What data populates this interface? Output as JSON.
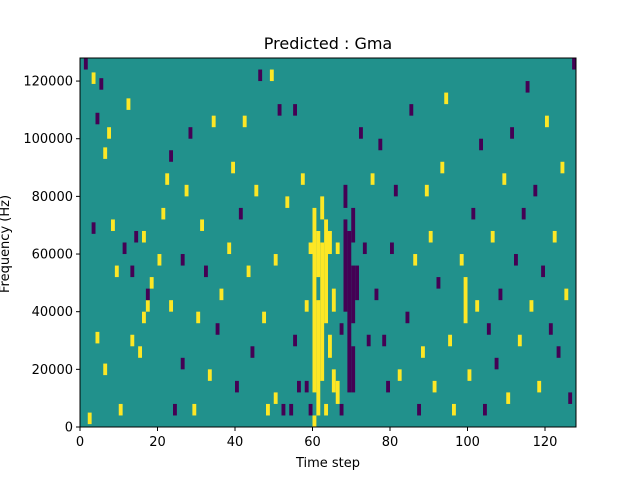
{
  "chart_data": {
    "type": "heatmap",
    "title": "Predicted : Gma",
    "xlabel": "Time step",
    "ylabel": "Frequency (Hz)",
    "xlim": [
      0,
      128
    ],
    "ylim": [
      0,
      128000
    ],
    "xticks": [
      0,
      20,
      40,
      60,
      80,
      100,
      120
    ],
    "yticks": [
      0,
      20000,
      40000,
      60000,
      80000,
      100000,
      120000
    ],
    "xtick_labels": [
      "0",
      "20",
      "40",
      "60",
      "80",
      "100",
      "120"
    ],
    "ytick_labels": [
      "0",
      "20000",
      "40000",
      "60000",
      "80000",
      "100000",
      "120000"
    ],
    "n_cols": 128,
    "n_rows": 128,
    "colors": {
      "low": "#440154",
      "mid": "#21918c",
      "high": "#fde725",
      "frame": "#000000"
    },
    "values_legend": {
      "-1": "low (dark purple)",
      "0": "mid (teal, background)",
      "1": "high (yellow)"
    },
    "background_value": 0,
    "cells": [
      {
        "t": 1,
        "f0": 124000,
        "f1": 128000,
        "v": -1
      },
      {
        "t": 2,
        "f0": 1000,
        "f1": 5000,
        "v": 1
      },
      {
        "t": 3,
        "f0": 119000,
        "f1": 123000,
        "v": 1
      },
      {
        "t": 3,
        "f0": 67000,
        "f1": 71000,
        "v": -1
      },
      {
        "t": 4,
        "f0": 29000,
        "f1": 33000,
        "v": 1
      },
      {
        "t": 4,
        "f0": 105000,
        "f1": 109000,
        "v": -1
      },
      {
        "t": 5,
        "f0": 117000,
        "f1": 121000,
        "v": -1
      },
      {
        "t": 6,
        "f0": 18000,
        "f1": 22000,
        "v": 1
      },
      {
        "t": 6,
        "f0": 93000,
        "f1": 97000,
        "v": 1
      },
      {
        "t": 7,
        "f0": 100000,
        "f1": 104000,
        "v": 1
      },
      {
        "t": 8,
        "f0": 68000,
        "f1": 72000,
        "v": 1
      },
      {
        "t": 9,
        "f0": 52000,
        "f1": 56000,
        "v": 1
      },
      {
        "t": 10,
        "f0": 4000,
        "f1": 8000,
        "v": 1
      },
      {
        "t": 11,
        "f0": 60000,
        "f1": 64000,
        "v": -1
      },
      {
        "t": 12,
        "f0": 110000,
        "f1": 114000,
        "v": 1
      },
      {
        "t": 13,
        "f0": 52000,
        "f1": 56000,
        "v": -1
      },
      {
        "t": 13,
        "f0": 28000,
        "f1": 32000,
        "v": 1
      },
      {
        "t": 14,
        "f0": 64000,
        "f1": 68000,
        "v": -1
      },
      {
        "t": 15,
        "f0": 24000,
        "f1": 28000,
        "v": 1
      },
      {
        "t": 16,
        "f0": 36000,
        "f1": 40000,
        "v": 1
      },
      {
        "t": 16,
        "f0": 64000,
        "f1": 68000,
        "v": 1
      },
      {
        "t": 17,
        "f0": 40000,
        "f1": 44000,
        "v": 1
      },
      {
        "t": 17,
        "f0": 44000,
        "f1": 48000,
        "v": -1
      },
      {
        "t": 18,
        "f0": 48000,
        "f1": 52000,
        "v": 1
      },
      {
        "t": 20,
        "f0": 56000,
        "f1": 60000,
        "v": 1
      },
      {
        "t": 21,
        "f0": 72000,
        "f1": 76000,
        "v": 1
      },
      {
        "t": 22,
        "f0": 84000,
        "f1": 88000,
        "v": 1
      },
      {
        "t": 23,
        "f0": 40000,
        "f1": 44000,
        "v": 1
      },
      {
        "t": 23,
        "f0": 92000,
        "f1": 96000,
        "v": -1
      },
      {
        "t": 24,
        "f0": 4000,
        "f1": 8000,
        "v": -1
      },
      {
        "t": 26,
        "f0": 20000,
        "f1": 24000,
        "v": -1
      },
      {
        "t": 26,
        "f0": 56000,
        "f1": 60000,
        "v": -1
      },
      {
        "t": 27,
        "f0": 80000,
        "f1": 84000,
        "v": 1
      },
      {
        "t": 28,
        "f0": 100000,
        "f1": 104000,
        "v": -1
      },
      {
        "t": 29,
        "f0": 4000,
        "f1": 8000,
        "v": 1
      },
      {
        "t": 30,
        "f0": 36000,
        "f1": 40000,
        "v": 1
      },
      {
        "t": 31,
        "f0": 68000,
        "f1": 72000,
        "v": 1
      },
      {
        "t": 32,
        "f0": 52000,
        "f1": 56000,
        "v": -1
      },
      {
        "t": 33,
        "f0": 16000,
        "f1": 20000,
        "v": 1
      },
      {
        "t": 34,
        "f0": 104000,
        "f1": 108000,
        "v": 1
      },
      {
        "t": 35,
        "f0": 32000,
        "f1": 36000,
        "v": -1
      },
      {
        "t": 36,
        "f0": 44000,
        "f1": 48000,
        "v": 1
      },
      {
        "t": 38,
        "f0": 60000,
        "f1": 64000,
        "v": 1
      },
      {
        "t": 39,
        "f0": 88000,
        "f1": 92000,
        "v": 1
      },
      {
        "t": 40,
        "f0": 12000,
        "f1": 16000,
        "v": -1
      },
      {
        "t": 41,
        "f0": 72000,
        "f1": 76000,
        "v": -1
      },
      {
        "t": 42,
        "f0": 104000,
        "f1": 108000,
        "v": 1
      },
      {
        "t": 43,
        "f0": 52000,
        "f1": 56000,
        "v": 1
      },
      {
        "t": 44,
        "f0": 24000,
        "f1": 28000,
        "v": -1
      },
      {
        "t": 45,
        "f0": 80000,
        "f1": 84000,
        "v": 1
      },
      {
        "t": 46,
        "f0": 120000,
        "f1": 124000,
        "v": -1
      },
      {
        "t": 47,
        "f0": 36000,
        "f1": 40000,
        "v": 1
      },
      {
        "t": 48,
        "f0": 4000,
        "f1": 8000,
        "v": 1
      },
      {
        "t": 49,
        "f0": 120000,
        "f1": 124000,
        "v": 1
      },
      {
        "t": 50,
        "f0": 56000,
        "f1": 60000,
        "v": 1
      },
      {
        "t": 50,
        "f0": 8000,
        "f1": 12000,
        "v": 1
      },
      {
        "t": 51,
        "f0": 108000,
        "f1": 112000,
        "v": -1
      },
      {
        "t": 52,
        "f0": 4000,
        "f1": 8000,
        "v": -1
      },
      {
        "t": 53,
        "f0": 76000,
        "f1": 80000,
        "v": 1
      },
      {
        "t": 54,
        "f0": 4000,
        "f1": 8000,
        "v": -1
      },
      {
        "t": 55,
        "f0": 28000,
        "f1": 32000,
        "v": -1
      },
      {
        "t": 55,
        "f0": 108000,
        "f1": 112000,
        "v": -1
      },
      {
        "t": 56,
        "f0": 12000,
        "f1": 16000,
        "v": -1
      },
      {
        "t": 57,
        "f0": 84000,
        "f1": 88000,
        "v": 1
      },
      {
        "t": 58,
        "f0": 40000,
        "f1": 44000,
        "v": 1
      },
      {
        "t": 58,
        "f0": 12000,
        "f1": 16000,
        "v": -1
      },
      {
        "t": 59,
        "f0": 4000,
        "f1": 8000,
        "v": -1
      },
      {
        "t": 59,
        "f0": 60000,
        "f1": 64000,
        "v": 1
      },
      {
        "t": 60,
        "f0": 0,
        "f1": 4000,
        "v": 1
      },
      {
        "t": 60,
        "f0": 12000,
        "f1": 76000,
        "v": 1
      },
      {
        "t": 61,
        "f0": 4000,
        "f1": 44000,
        "v": 1
      },
      {
        "t": 61,
        "f0": 52000,
        "f1": 68000,
        "v": 1
      },
      {
        "t": 62,
        "f0": 16000,
        "f1": 64000,
        "v": 1
      },
      {
        "t": 62,
        "f0": 72000,
        "f1": 80000,
        "v": 1
      },
      {
        "t": 63,
        "f0": 4000,
        "f1": 8000,
        "v": 1
      },
      {
        "t": 63,
        "f0": 36000,
        "f1": 72000,
        "v": 1
      },
      {
        "t": 64,
        "f0": 24000,
        "f1": 32000,
        "v": 1
      },
      {
        "t": 64,
        "f0": 60000,
        "f1": 68000,
        "v": 1
      },
      {
        "t": 65,
        "f0": 12000,
        "f1": 20000,
        "v": 1
      },
      {
        "t": 65,
        "f0": 40000,
        "f1": 48000,
        "v": 1
      },
      {
        "t": 66,
        "f0": 8000,
        "f1": 16000,
        "v": 1
      },
      {
        "t": 66,
        "f0": 60000,
        "f1": 64000,
        "v": 1
      },
      {
        "t": 67,
        "f0": 4000,
        "f1": 8000,
        "v": -1
      },
      {
        "t": 67,
        "f0": 32000,
        "f1": 36000,
        "v": -1
      },
      {
        "t": 68,
        "f0": 40000,
        "f1": 72000,
        "v": -1
      },
      {
        "t": 68,
        "f0": 76000,
        "f1": 84000,
        "v": -1
      },
      {
        "t": 69,
        "f0": 12000,
        "f1": 68000,
        "v": -1
      },
      {
        "t": 70,
        "f0": 12000,
        "f1": 28000,
        "v": -1
      },
      {
        "t": 70,
        "f0": 36000,
        "f1": 56000,
        "v": -1
      },
      {
        "t": 70,
        "f0": 64000,
        "f1": 76000,
        "v": -1
      },
      {
        "t": 71,
        "f0": 44000,
        "f1": 56000,
        "v": -1
      },
      {
        "t": 72,
        "f0": 100000,
        "f1": 104000,
        "v": -1
      },
      {
        "t": 73,
        "f0": 60000,
        "f1": 64000,
        "v": -1
      },
      {
        "t": 74,
        "f0": 28000,
        "f1": 32000,
        "v": -1
      },
      {
        "t": 75,
        "f0": 84000,
        "f1": 88000,
        "v": 1
      },
      {
        "t": 76,
        "f0": 44000,
        "f1": 48000,
        "v": -1
      },
      {
        "t": 77,
        "f0": 96000,
        "f1": 100000,
        "v": -1
      },
      {
        "t": 78,
        "f0": 28000,
        "f1": 32000,
        "v": -1
      },
      {
        "t": 79,
        "f0": 12000,
        "f1": 16000,
        "v": -1
      },
      {
        "t": 80,
        "f0": 60000,
        "f1": 64000,
        "v": -1
      },
      {
        "t": 81,
        "f0": 80000,
        "f1": 84000,
        "v": -1
      },
      {
        "t": 82,
        "f0": 16000,
        "f1": 20000,
        "v": 1
      },
      {
        "t": 84,
        "f0": 36000,
        "f1": 40000,
        "v": -1
      },
      {
        "t": 85,
        "f0": 108000,
        "f1": 112000,
        "v": -1
      },
      {
        "t": 86,
        "f0": 56000,
        "f1": 60000,
        "v": 1
      },
      {
        "t": 87,
        "f0": 4000,
        "f1": 8000,
        "v": -1
      },
      {
        "t": 88,
        "f0": 24000,
        "f1": 28000,
        "v": 1
      },
      {
        "t": 89,
        "f0": 80000,
        "f1": 84000,
        "v": 1
      },
      {
        "t": 90,
        "f0": 64000,
        "f1": 68000,
        "v": 1
      },
      {
        "t": 91,
        "f0": 12000,
        "f1": 16000,
        "v": 1
      },
      {
        "t": 92,
        "f0": 48000,
        "f1": 52000,
        "v": -1
      },
      {
        "t": 93,
        "f0": 88000,
        "f1": 92000,
        "v": 1
      },
      {
        "t": 94,
        "f0": 112000,
        "f1": 116000,
        "v": 1
      },
      {
        "t": 95,
        "f0": 28000,
        "f1": 32000,
        "v": 1
      },
      {
        "t": 96,
        "f0": 4000,
        "f1": 8000,
        "v": 1
      },
      {
        "t": 98,
        "f0": 56000,
        "f1": 60000,
        "v": 1
      },
      {
        "t": 99,
        "f0": 36000,
        "f1": 52000,
        "v": 1
      },
      {
        "t": 100,
        "f0": 16000,
        "f1": 20000,
        "v": 1
      },
      {
        "t": 101,
        "f0": 72000,
        "f1": 76000,
        "v": -1
      },
      {
        "t": 102,
        "f0": 40000,
        "f1": 44000,
        "v": 1
      },
      {
        "t": 103,
        "f0": 96000,
        "f1": 100000,
        "v": -1
      },
      {
        "t": 104,
        "f0": 4000,
        "f1": 8000,
        "v": -1
      },
      {
        "t": 105,
        "f0": 32000,
        "f1": 36000,
        "v": -1
      },
      {
        "t": 106,
        "f0": 64000,
        "f1": 68000,
        "v": 1
      },
      {
        "t": 107,
        "f0": 20000,
        "f1": 24000,
        "v": -1
      },
      {
        "t": 108,
        "f0": 44000,
        "f1": 48000,
        "v": -1
      },
      {
        "t": 109,
        "f0": 84000,
        "f1": 88000,
        "v": 1
      },
      {
        "t": 110,
        "f0": 8000,
        "f1": 12000,
        "v": 1
      },
      {
        "t": 111,
        "f0": 100000,
        "f1": 104000,
        "v": -1
      },
      {
        "t": 112,
        "f0": 56000,
        "f1": 60000,
        "v": -1
      },
      {
        "t": 113,
        "f0": 28000,
        "f1": 32000,
        "v": 1
      },
      {
        "t": 114,
        "f0": 72000,
        "f1": 76000,
        "v": -1
      },
      {
        "t": 115,
        "f0": 116000,
        "f1": 120000,
        "v": -1
      },
      {
        "t": 116,
        "f0": 40000,
        "f1": 44000,
        "v": 1
      },
      {
        "t": 117,
        "f0": 80000,
        "f1": 84000,
        "v": -1
      },
      {
        "t": 118,
        "f0": 12000,
        "f1": 16000,
        "v": 1
      },
      {
        "t": 119,
        "f0": 52000,
        "f1": 56000,
        "v": -1
      },
      {
        "t": 120,
        "f0": 104000,
        "f1": 108000,
        "v": 1
      },
      {
        "t": 121,
        "f0": 32000,
        "f1": 36000,
        "v": -1
      },
      {
        "t": 122,
        "f0": 64000,
        "f1": 68000,
        "v": 1
      },
      {
        "t": 123,
        "f0": 24000,
        "f1": 28000,
        "v": -1
      },
      {
        "t": 124,
        "f0": 88000,
        "f1": 92000,
        "v": 1
      },
      {
        "t": 125,
        "f0": 44000,
        "f1": 48000,
        "v": 1
      },
      {
        "t": 126,
        "f0": 8000,
        "f1": 12000,
        "v": -1
      },
      {
        "t": 127,
        "f0": 124000,
        "f1": 128000,
        "v": -1
      }
    ]
  }
}
